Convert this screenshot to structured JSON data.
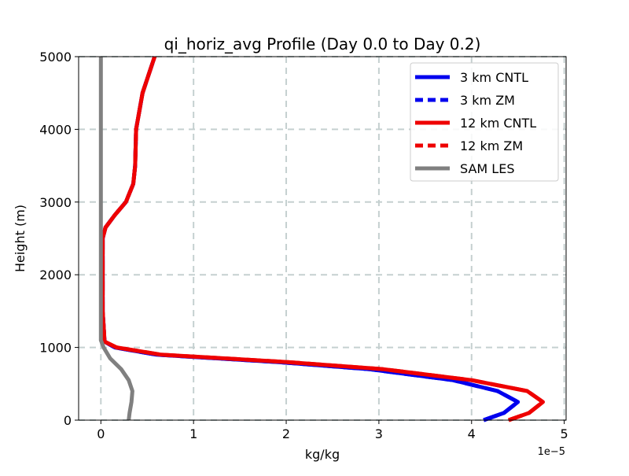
{
  "chart_data": {
    "type": "line",
    "title": "qi_horiz_avg Profile (Day 0.0 to Day 0.2)",
    "xlabel": "kg/kg",
    "ylabel": "Height (m)",
    "x_offset_label": "1e−5",
    "xlim": [
      -0.24,
      5.02
    ],
    "ylim": [
      0,
      5000
    ],
    "xticks": [
      0,
      1,
      2,
      3,
      4,
      5
    ],
    "xtick_labels": [
      "0",
      "1",
      "2",
      "3",
      "4",
      "5"
    ],
    "yticks": [
      0,
      1000,
      2000,
      3000,
      4000,
      5000
    ],
    "ytick_labels": [
      "0",
      "1000",
      "2000",
      "3000",
      "4000",
      "5000"
    ],
    "grid": true,
    "legend_position": "top-right",
    "x_unit_scale": 1e-05,
    "series": [
      {
        "name": "3 km CNTL",
        "color": "#0000ee",
        "dash": "solid",
        "points": [
          [
            4.13,
            0
          ],
          [
            4.35,
            100
          ],
          [
            4.5,
            250
          ],
          [
            4.28,
            400
          ],
          [
            3.8,
            550
          ],
          [
            2.9,
            700
          ],
          [
            1.9,
            800
          ],
          [
            0.6,
            900
          ],
          [
            0.15,
            1000
          ],
          [
            0.04,
            1080
          ],
          [
            0.02,
            1500
          ],
          [
            0.02,
            2000
          ],
          [
            0.02,
            2500
          ],
          [
            0.05,
            2650
          ],
          [
            0.15,
            2820
          ],
          [
            0.27,
            3000
          ],
          [
            0.35,
            3250
          ],
          [
            0.37,
            3500
          ],
          [
            0.38,
            4000
          ],
          [
            0.45,
            4500
          ],
          [
            0.58,
            5000
          ]
        ]
      },
      {
        "name": "3 km ZM",
        "color": "#0000ee",
        "dash": "dashed",
        "points": [
          [
            4.13,
            0
          ],
          [
            4.35,
            100
          ],
          [
            4.5,
            250
          ],
          [
            4.28,
            400
          ],
          [
            3.8,
            550
          ],
          [
            2.9,
            700
          ],
          [
            1.9,
            800
          ],
          [
            0.6,
            900
          ],
          [
            0.15,
            1000
          ],
          [
            0.04,
            1080
          ],
          [
            0.02,
            1500
          ],
          [
            0.02,
            2000
          ],
          [
            0.02,
            2500
          ],
          [
            0.05,
            2650
          ],
          [
            0.15,
            2820
          ],
          [
            0.27,
            3000
          ],
          [
            0.35,
            3250
          ],
          [
            0.37,
            3500
          ],
          [
            0.38,
            4000
          ],
          [
            0.45,
            4500
          ],
          [
            0.58,
            5000
          ]
        ]
      },
      {
        "name": "12 km CNTL",
        "color": "#ee0000",
        "dash": "solid",
        "points": [
          [
            4.4,
            0
          ],
          [
            4.62,
            100
          ],
          [
            4.77,
            250
          ],
          [
            4.6,
            400
          ],
          [
            4.0,
            550
          ],
          [
            3.05,
            700
          ],
          [
            2.0,
            800
          ],
          [
            0.65,
            900
          ],
          [
            0.17,
            1000
          ],
          [
            0.04,
            1080
          ],
          [
            0.02,
            1500
          ],
          [
            0.02,
            2000
          ],
          [
            0.02,
            2500
          ],
          [
            0.05,
            2650
          ],
          [
            0.15,
            2820
          ],
          [
            0.27,
            3000
          ],
          [
            0.35,
            3250
          ],
          [
            0.37,
            3500
          ],
          [
            0.38,
            4000
          ],
          [
            0.45,
            4500
          ],
          [
            0.58,
            5000
          ]
        ]
      },
      {
        "name": "12 km ZM",
        "color": "#ee0000",
        "dash": "dashed",
        "points": [
          [
            4.4,
            0
          ],
          [
            4.62,
            100
          ],
          [
            4.77,
            250
          ],
          [
            4.6,
            400
          ],
          [
            4.0,
            550
          ],
          [
            3.05,
            700
          ],
          [
            2.0,
            800
          ],
          [
            0.65,
            900
          ],
          [
            0.17,
            1000
          ],
          [
            0.04,
            1080
          ],
          [
            0.02,
            1500
          ],
          [
            0.02,
            2000
          ],
          [
            0.02,
            2500
          ],
          [
            0.05,
            2650
          ],
          [
            0.15,
            2820
          ],
          [
            0.27,
            3000
          ],
          [
            0.35,
            3250
          ],
          [
            0.37,
            3500
          ],
          [
            0.38,
            4000
          ],
          [
            0.45,
            4500
          ],
          [
            0.58,
            5000
          ]
        ]
      },
      {
        "name": "SAM LES",
        "color": "#808080",
        "dash": "solid",
        "points": [
          [
            0.3,
            0
          ],
          [
            0.31,
            100
          ],
          [
            0.33,
            250
          ],
          [
            0.34,
            400
          ],
          [
            0.3,
            550
          ],
          [
            0.22,
            700
          ],
          [
            0.1,
            850
          ],
          [
            0.03,
            1000
          ],
          [
            0.0,
            1100
          ],
          [
            0.0,
            2000
          ],
          [
            0.0,
            3000
          ],
          [
            0.0,
            4000
          ],
          [
            0.0,
            5000
          ]
        ]
      }
    ]
  }
}
